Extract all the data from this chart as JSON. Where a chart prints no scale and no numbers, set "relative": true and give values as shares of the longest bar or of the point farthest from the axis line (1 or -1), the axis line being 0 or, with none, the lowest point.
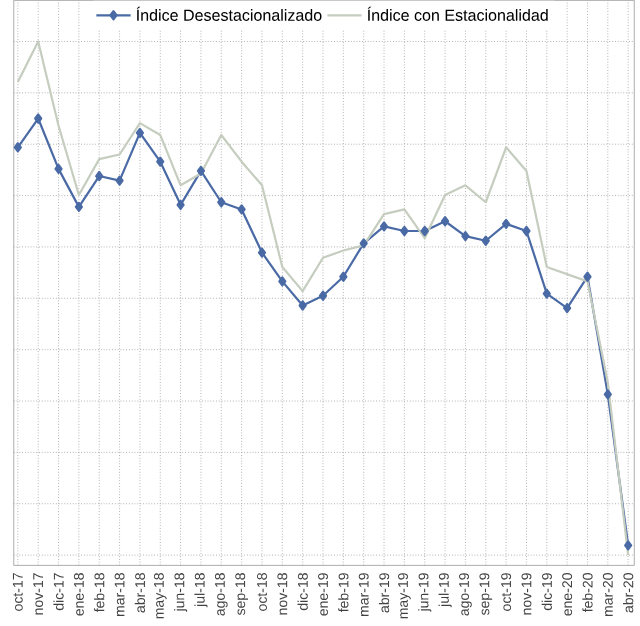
{
  "chart_data": {
    "type": "line",
    "relative": true,
    "grid": true,
    "legend": "top",
    "categories": [
      "oct-17",
      "nov-17",
      "dic-17",
      "ene-18",
      "feb-18",
      "mar-18",
      "abr-18",
      "may-18",
      "jun-18",
      "jul-18",
      "ago-18",
      "sep-18",
      "oct-18",
      "nov-18",
      "dic-18",
      "ene-19",
      "feb-19",
      "mar-19",
      "abr-19",
      "may-19",
      "jun-19",
      "jul-19",
      "ago-19",
      "sep-19",
      "oct-19",
      "nov-19",
      "dic-19",
      "ene-20",
      "feb-20",
      "mar-20",
      "abr-20"
    ],
    "series": [
      {
        "name": "Índice Desestacionalizado",
        "color": "#4a6aa5",
        "marker": "diamond",
        "values": [
          0.794,
          0.85,
          0.752,
          0.678,
          0.738,
          0.729,
          0.822,
          0.766,
          0.682,
          0.748,
          0.687,
          0.673,
          0.589,
          0.533,
          0.486,
          0.505,
          0.542,
          0.607,
          0.64,
          0.631,
          0.631,
          0.65,
          0.621,
          0.612,
          0.645,
          0.631,
          0.509,
          0.481,
          0.542,
          0.313,
          0.019
        ]
      },
      {
        "name": "Índice con Estacionalidad",
        "color": "#c5cdbf",
        "marker": "none",
        "values": [
          0.921,
          1.0,
          0.836,
          0.701,
          0.771,
          0.78,
          0.841,
          0.818,
          0.72,
          0.743,
          0.818,
          0.766,
          0.72,
          0.561,
          0.514,
          0.579,
          0.593,
          0.603,
          0.664,
          0.673,
          0.617,
          0.701,
          0.72,
          0.687,
          0.794,
          0.748,
          0.561,
          0.547,
          0.533,
          0.336,
          0.0
        ]
      }
    ]
  }
}
